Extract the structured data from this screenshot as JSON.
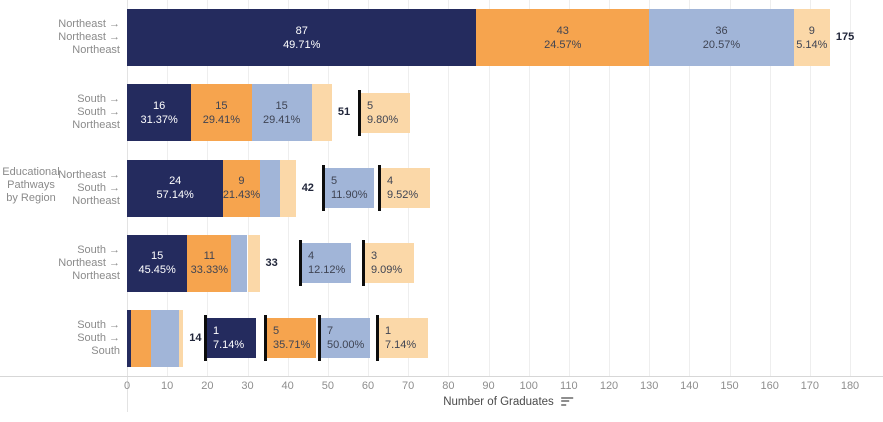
{
  "chart_data": {
    "type": "bar",
    "variant": "horizontal-stacked",
    "title": "",
    "xlabel": "Number of Graduates",
    "ylabel": "Educational Pathways by Region",
    "ylabel_lines": [
      "Educational",
      "Pathways",
      "by Region"
    ],
    "xlim": [
      0,
      180
    ],
    "x_ticks": [
      0,
      10,
      20,
      30,
      40,
      50,
      60,
      70,
      80,
      90,
      100,
      110,
      120,
      130,
      140,
      150,
      160,
      170,
      180
    ],
    "grid": "light vertical gridlines on white background",
    "legend": "none",
    "colors": {
      "navy": "#242b5e",
      "orange": "#f6a44e",
      "blue": "#a1b5d8",
      "peach": "#fbd8a8",
      "callout_tick": "#0c0c0c",
      "label_dark": "#3f4453",
      "label_gray": "#8b8b8b"
    },
    "categories": [
      "Northeast → Northeast → Northeast",
      "South → South → Northeast",
      "Northeast → South → Northeast",
      "South → Northeast → Northeast",
      "South → South → South"
    ],
    "series": [
      {
        "name": "stage-1-navy",
        "color": "navy",
        "values": [
          87,
          16,
          24,
          15,
          1
        ]
      },
      {
        "name": "stage-2-orange",
        "color": "orange",
        "values": [
          43,
          15,
          9,
          11,
          5
        ]
      },
      {
        "name": "stage-3-blue",
        "color": "blue",
        "values": [
          36,
          15,
          5,
          4,
          7
        ]
      },
      {
        "name": "stage-4-peach",
        "color": "peach",
        "values": [
          9,
          5,
          4,
          3,
          1
        ]
      }
    ],
    "totals": [
      175,
      51,
      42,
      33,
      14
    ],
    "rows": [
      {
        "label_lines": [
          "Northeast →",
          "Northeast →",
          "Northeast"
        ],
        "total": "175",
        "segments": [
          {
            "color": "navy",
            "value": 87,
            "pct": "49.71%"
          },
          {
            "color": "orange",
            "value": 43,
            "pct": "24.57%"
          },
          {
            "color": "blue",
            "value": 36,
            "pct": "20.57%"
          },
          {
            "color": "peach",
            "value": 9,
            "pct": "5.14%"
          }
        ],
        "callouts": []
      },
      {
        "label_lines": [
          "South →",
          "South →",
          "Northeast"
        ],
        "total": "51",
        "segments": [
          {
            "color": "navy",
            "value": 16,
            "pct": "31.37%"
          },
          {
            "color": "orange",
            "value": 15,
            "pct": "29.41%"
          },
          {
            "color": "blue",
            "value": 15,
            "pct": "29.41%"
          },
          {
            "color": "peach",
            "value": 5,
            "pct": "9.80%"
          }
        ],
        "callouts": [
          {
            "color": "peach",
            "value": "5",
            "pct": "9.80%",
            "x": 358
          }
        ]
      },
      {
        "label_lines": [
          "Northeast →",
          "South →",
          "Northeast"
        ],
        "total": "42",
        "segments": [
          {
            "color": "navy",
            "value": 24,
            "pct": "57.14%"
          },
          {
            "color": "orange",
            "value": 9,
            "pct": "21.43%"
          },
          {
            "color": "blue",
            "value": 5,
            "pct": "11.90%"
          },
          {
            "color": "peach",
            "value": 4,
            "pct": "9.52%"
          }
        ],
        "callouts": [
          {
            "color": "blue",
            "value": "5",
            "pct": "11.90%",
            "x": 322
          },
          {
            "color": "peach",
            "value": "4",
            "pct": "9.52%",
            "x": 378
          }
        ]
      },
      {
        "label_lines": [
          "South →",
          "Northeast →",
          "Northeast"
        ],
        "total": "33",
        "segments": [
          {
            "color": "navy",
            "value": 15,
            "pct": "45.45%"
          },
          {
            "color": "orange",
            "value": 11,
            "pct": "33.33%"
          },
          {
            "color": "blue",
            "value": 4,
            "pct": "12.12%"
          },
          {
            "color": "peach",
            "value": 3,
            "pct": "9.09%"
          }
        ],
        "callouts": [
          {
            "color": "blue",
            "value": "4",
            "pct": "12.12%",
            "x": 299
          },
          {
            "color": "peach",
            "value": "3",
            "pct": "9.09%",
            "x": 362
          }
        ]
      },
      {
        "label_lines": [
          "South →",
          "South →",
          "South"
        ],
        "total": "14",
        "segments": [
          {
            "color": "navy",
            "value": 1,
            "pct": "7.14%"
          },
          {
            "color": "orange",
            "value": 5,
            "pct": "35.71%"
          },
          {
            "color": "blue",
            "value": 7,
            "pct": "50.00%"
          },
          {
            "color": "peach",
            "value": 1,
            "pct": "7.14%"
          }
        ],
        "callouts": [
          {
            "color": "navy",
            "value": "1",
            "pct": "7.14%",
            "x": 204
          },
          {
            "color": "orange",
            "value": "5",
            "pct": "35.71%",
            "x": 264
          },
          {
            "color": "blue",
            "value": "7",
            "pct": "50.00%",
            "x": 318
          },
          {
            "color": "peach",
            "value": "1",
            "pct": "7.14%",
            "x": 376
          }
        ]
      }
    ],
    "sort_icon": "sort-descending-icon"
  }
}
